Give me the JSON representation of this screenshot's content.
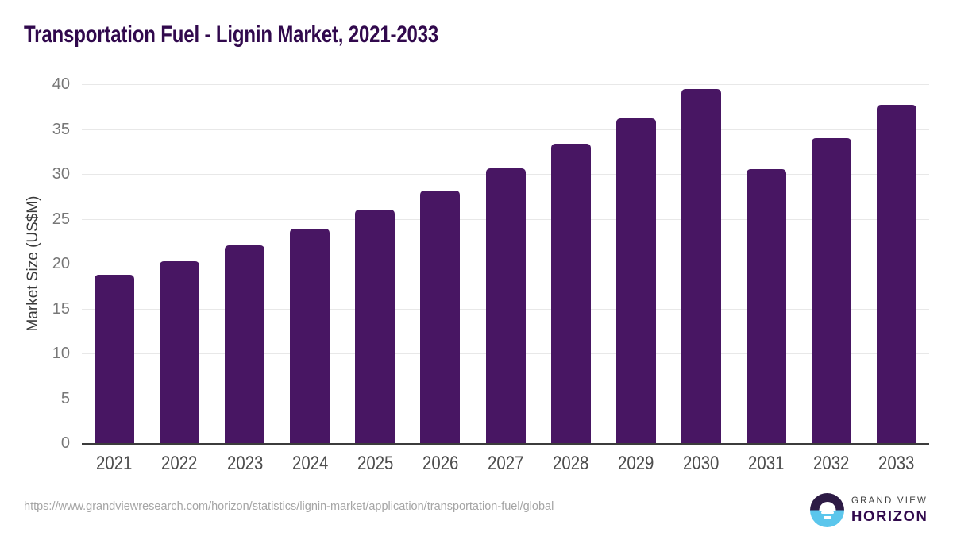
{
  "page": {
    "title": "Transportation Fuel - Lignin Market, 2021-2033"
  },
  "chart_data": {
    "type": "bar",
    "title": "Transportation Fuel - Lignin Market, 2021-2033",
    "categories": [
      "2021",
      "2022",
      "2023",
      "2024",
      "2025",
      "2026",
      "2027",
      "2028",
      "2029",
      "2030",
      "2031",
      "2032",
      "2033"
    ],
    "values": [
      18.8,
      20.3,
      22.0,
      23.9,
      26.0,
      28.1,
      30.6,
      33.4,
      36.2,
      39.5,
      30.5,
      34.0,
      37.7
    ],
    "xlabel": "",
    "ylabel": "Market Size (US$M)",
    "ylim": [
      0,
      40
    ],
    "yticks": [
      0,
      5,
      10,
      15,
      20,
      25,
      30,
      35,
      40
    ],
    "grid": true,
    "legend": false,
    "bar_color": "#481663"
  },
  "footer": {
    "source_url": "https://www.grandviewresearch.com/horizon/statistics/lignin-market/application/transportation-fuel/global",
    "logo": {
      "brand_top": "GRAND VIEW",
      "brand_bottom": "HORIZON"
    }
  },
  "colors": {
    "title_text": "#31094d",
    "bar": "#481663",
    "gridline": "#e8e8e8",
    "axis_line": "#3c3c3c",
    "y_tick_label": "#777777",
    "x_tick_label": "#4d4d4d",
    "y_axis_title": "#3a3a3a",
    "source_url_text": "#a5a5a5",
    "logo_circle_top": "#2d1b45",
    "logo_circle_bottom": "#5bc6ec",
    "logo_brand_top_text": "#3f3f3f",
    "logo_brand_bottom_text": "#31094d"
  }
}
